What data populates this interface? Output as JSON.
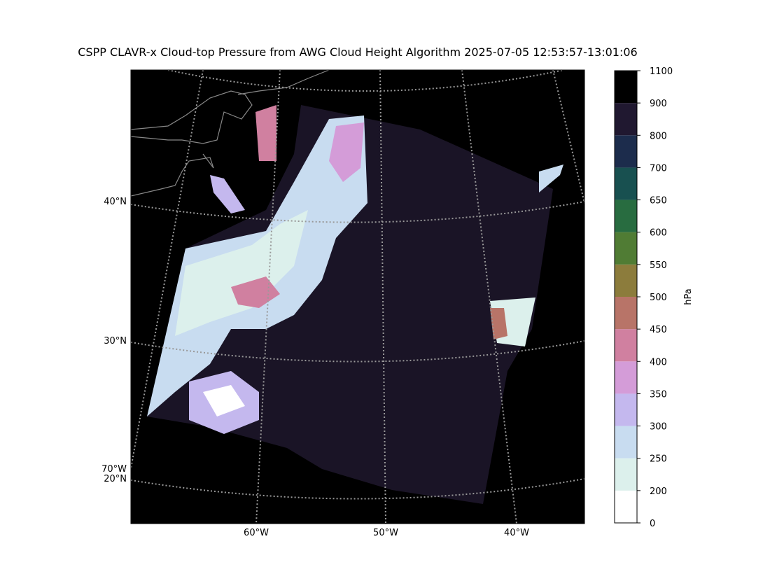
{
  "map": {
    "title": "CSPP CLAVR-x Cloud-top Pressure from AWG Cloud Height Algorithm 2025-07-05 12:53:57-13:01:06",
    "lat_labels": [
      "40°N",
      "30°N",
      "70°W",
      "20°N"
    ],
    "lon_labels": [
      "60°W",
      "50°W",
      "40°W"
    ],
    "colorbar": {
      "label": "hPa",
      "ticks": [
        0,
        200,
        250,
        300,
        350,
        400,
        450,
        500,
        550,
        600,
        650,
        700,
        800,
        900,
        1100
      ],
      "colors": [
        "#ffffff",
        "#dcf0ec",
        "#c8dcf0",
        "#c4b8ee",
        "#d49cd8",
        "#d080a0",
        "#b87468",
        "#8c7c3c",
        "#507c34",
        "#286c40",
        "#185050",
        "#1c2c4c",
        "#201830",
        "#000000"
      ]
    }
  }
}
